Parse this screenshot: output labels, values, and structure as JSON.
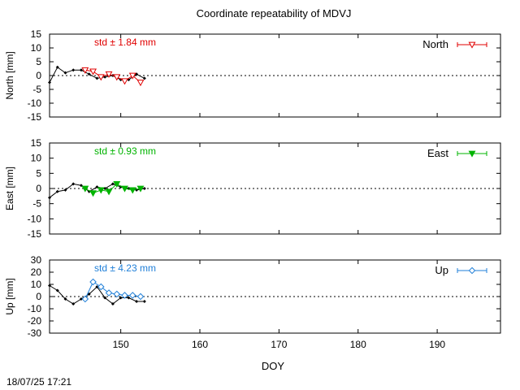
{
  "title": "Coordinate repeatability of MDVJ",
  "timestamp": "18/07/25 17:21",
  "xlabel": "DOY",
  "chart_data": [
    {
      "type": "line",
      "panel": "north",
      "ylabel": "North [mm]",
      "xlim": [
        141,
        198
      ],
      "ylim": [
        -15,
        15
      ],
      "yticks": [
        -15,
        -10,
        -5,
        0,
        5,
        10,
        15
      ],
      "xticks": [
        150,
        160,
        170,
        180,
        190
      ],
      "grid": false,
      "std_label": "std ± 1.84 mm",
      "legend_label": "North",
      "legend_placement": "top-right",
      "color": "#e00000",
      "marker": "triangle-down-open",
      "series": [
        {
          "x": [
            141,
            142,
            143,
            144,
            145,
            146,
            147,
            148,
            149,
            150,
            151,
            152,
            153
          ],
          "y": [
            -2.5,
            3.0,
            1.0,
            2.0,
            2.0,
            0.5,
            -1.0,
            -0.5,
            0.0,
            -1.5,
            -1.5,
            0.5,
            -1.0
          ]
        },
        {
          "x": [
            145.5,
            146.5,
            147.5,
            148.5,
            149.5,
            150.5,
            151.5,
            152.5
          ],
          "y": [
            2.0,
            1.5,
            -0.5,
            0.5,
            -0.5,
            -2.0,
            0.0,
            -2.5
          ]
        }
      ]
    },
    {
      "type": "line",
      "panel": "east",
      "ylabel": "East [mm]",
      "xlim": [
        141,
        198
      ],
      "ylim": [
        -15,
        15
      ],
      "yticks": [
        -15,
        -10,
        -5,
        0,
        5,
        10,
        15
      ],
      "xticks": [
        150,
        160,
        170,
        180,
        190
      ],
      "grid": false,
      "std_label": "std ± 0.93 mm",
      "legend_label": "East",
      "legend_placement": "top-right",
      "color": "#00b400",
      "marker": "triangle-down-filled",
      "series": [
        {
          "x": [
            141,
            142,
            143,
            144,
            145,
            146,
            147,
            148,
            149,
            150,
            151,
            152,
            153
          ],
          "y": [
            -3.0,
            -1.0,
            -0.5,
            1.5,
            1.0,
            -1.0,
            0.5,
            0.0,
            1.5,
            0.5,
            0.0,
            -0.5,
            0.0
          ]
        },
        {
          "x": [
            145.5,
            146.5,
            147.5,
            148.5,
            149.5,
            150.5,
            151.5,
            152.5
          ],
          "y": [
            0.0,
            -1.5,
            -0.5,
            -1.0,
            1.5,
            0.0,
            -0.5,
            0.0
          ]
        }
      ]
    },
    {
      "type": "line",
      "panel": "up",
      "ylabel": "Up [mm]",
      "xlim": [
        141,
        198
      ],
      "ylim": [
        -30,
        30
      ],
      "yticks": [
        -30,
        -20,
        -10,
        0,
        10,
        20,
        30
      ],
      "xticks": [
        150,
        160,
        170,
        180,
        190
      ],
      "grid": false,
      "std_label": "std ± 4.23 mm",
      "legend_label": "Up",
      "legend_placement": "top-right",
      "color": "#1f7fd8",
      "marker": "diamond-open",
      "series": [
        {
          "x": [
            141,
            142,
            143,
            144,
            145,
            146,
            147,
            148,
            149,
            150,
            151,
            152,
            153
          ],
          "y": [
            9,
            5,
            -2,
            -6,
            -2,
            2,
            8,
            -1,
            -6,
            -1,
            -1,
            -4,
            -4
          ]
        },
        {
          "x": [
            145.5,
            146.5,
            147.5,
            148.5,
            149.5,
            150.5,
            151.5,
            152.5
          ],
          "y": [
            -2,
            12,
            8,
            3,
            2,
            1,
            1,
            0
          ]
        }
      ]
    }
  ]
}
